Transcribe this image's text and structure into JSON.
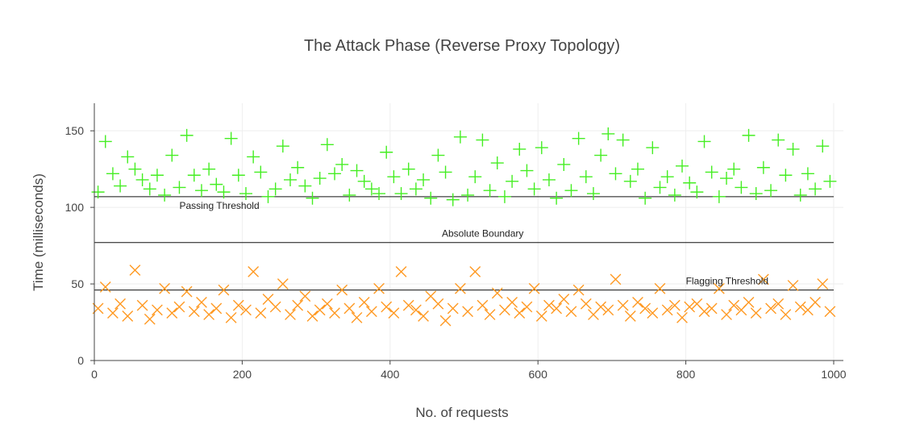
{
  "chart_data": {
    "type": "scatter",
    "title": "The Attack Phase (Reverse Proxy Topology)",
    "xlabel": "No. of requests",
    "ylabel": "Time (milliseconds)",
    "xlim": [
      0,
      1000
    ],
    "ylim": [
      0,
      168
    ],
    "x_ticks": [
      0,
      200,
      400,
      600,
      800,
      1000
    ],
    "y_ticks": [
      0,
      50,
      100,
      150
    ],
    "x_tick_labels": [
      "0",
      "200",
      "400",
      "600",
      "800",
      "1000"
    ],
    "y_tick_labels": [
      "0",
      "50",
      "100",
      "150"
    ],
    "grid": true,
    "legend": "none",
    "series": [
      {
        "marker": "cross",
        "color": "#44ee22",
        "x": [
          5,
          15,
          25,
          35,
          45,
          55,
          65,
          75,
          85,
          95,
          105,
          115,
          125,
          135,
          145,
          155,
          165,
          175,
          185,
          195,
          205,
          215,
          225,
          235,
          245,
          255,
          265,
          275,
          285,
          295,
          305,
          315,
          325,
          335,
          345,
          355,
          365,
          375,
          385,
          395,
          405,
          415,
          425,
          435,
          445,
          455,
          465,
          475,
          485,
          495,
          505,
          515,
          525,
          535,
          545,
          555,
          565,
          575,
          585,
          595,
          605,
          615,
          625,
          635,
          645,
          655,
          665,
          675,
          685,
          695,
          705,
          715,
          725,
          735,
          745,
          755,
          765,
          775,
          785,
          795,
          805,
          815,
          825,
          835,
          845,
          855,
          865,
          875,
          885,
          895,
          905,
          915,
          925,
          935,
          945,
          955,
          965,
          975,
          985,
          995
        ],
        "y": [
          110,
          143,
          122,
          114,
          133,
          125,
          118,
          112,
          121,
          108,
          134,
          113,
          147,
          121,
          111,
          125,
          115,
          110,
          145,
          121,
          109,
          133,
          123,
          107,
          112,
          140,
          118,
          126,
          114,
          106,
          119,
          141,
          122,
          128,
          108,
          124,
          117,
          112,
          109,
          136,
          120,
          109,
          125,
          112,
          118,
          106,
          134,
          123,
          105,
          146,
          108,
          120,
          144,
          111,
          129,
          107,
          117,
          138,
          124,
          112,
          139,
          118,
          106,
          128,
          111,
          145,
          120,
          109,
          134,
          148,
          122,
          144,
          117,
          125,
          106,
          139,
          113,
          120,
          108,
          127,
          116,
          110,
          143,
          123,
          107,
          119,
          125,
          113,
          147,
          109,
          126,
          111,
          144,
          121,
          138,
          108,
          122,
          112,
          140,
          117
        ]
      },
      {
        "marker": "x",
        "color": "#ff9922",
        "x": [
          5,
          15,
          25,
          35,
          45,
          55,
          65,
          75,
          85,
          95,
          105,
          115,
          125,
          135,
          145,
          155,
          165,
          175,
          185,
          195,
          205,
          215,
          225,
          235,
          245,
          255,
          265,
          275,
          285,
          295,
          305,
          315,
          325,
          335,
          345,
          355,
          365,
          375,
          385,
          395,
          405,
          415,
          425,
          435,
          445,
          455,
          465,
          475,
          485,
          495,
          505,
          515,
          525,
          535,
          545,
          555,
          565,
          575,
          585,
          595,
          605,
          615,
          625,
          635,
          645,
          655,
          665,
          675,
          685,
          695,
          705,
          715,
          725,
          735,
          745,
          755,
          765,
          775,
          785,
          795,
          805,
          815,
          825,
          835,
          845,
          855,
          865,
          875,
          885,
          895,
          905,
          915,
          925,
          935,
          945,
          955,
          965,
          975,
          985,
          995
        ],
        "y": [
          34,
          48,
          31,
          37,
          29,
          59,
          36,
          27,
          33,
          47,
          31,
          35,
          45,
          32,
          38,
          30,
          34,
          46,
          28,
          36,
          33,
          58,
          31,
          40,
          35,
          50,
          30,
          36,
          42,
          29,
          33,
          37,
          31,
          46,
          34,
          28,
          38,
          32,
          47,
          35,
          31,
          58,
          36,
          33,
          29,
          42,
          37,
          26,
          34,
          47,
          32,
          58,
          36,
          30,
          44,
          33,
          38,
          31,
          35,
          47,
          29,
          36,
          34,
          40,
          32,
          46,
          37,
          30,
          35,
          33,
          53,
          36,
          29,
          38,
          34,
          31,
          47,
          33,
          36,
          28,
          35,
          37,
          32,
          34,
          47,
          30,
          36,
          33,
          38,
          31,
          53,
          34,
          37,
          30,
          49,
          35,
          33,
          38,
          50,
          32
        ]
      }
    ],
    "reference_lines": [
      {
        "y": 107,
        "label": "Passing Threshold"
      },
      {
        "y": 77,
        "label": "Absolute Boundary"
      },
      {
        "y": 46,
        "label": "Flagging Threshold"
      }
    ],
    "annotations": [
      {
        "text": "Passing Threshold",
        "x": 115,
        "y": 101
      },
      {
        "text": "Absolute Boundary",
        "x": 470,
        "y": 83
      },
      {
        "text": "Flagging Threshold",
        "x": 800,
        "y": 52
      }
    ]
  }
}
